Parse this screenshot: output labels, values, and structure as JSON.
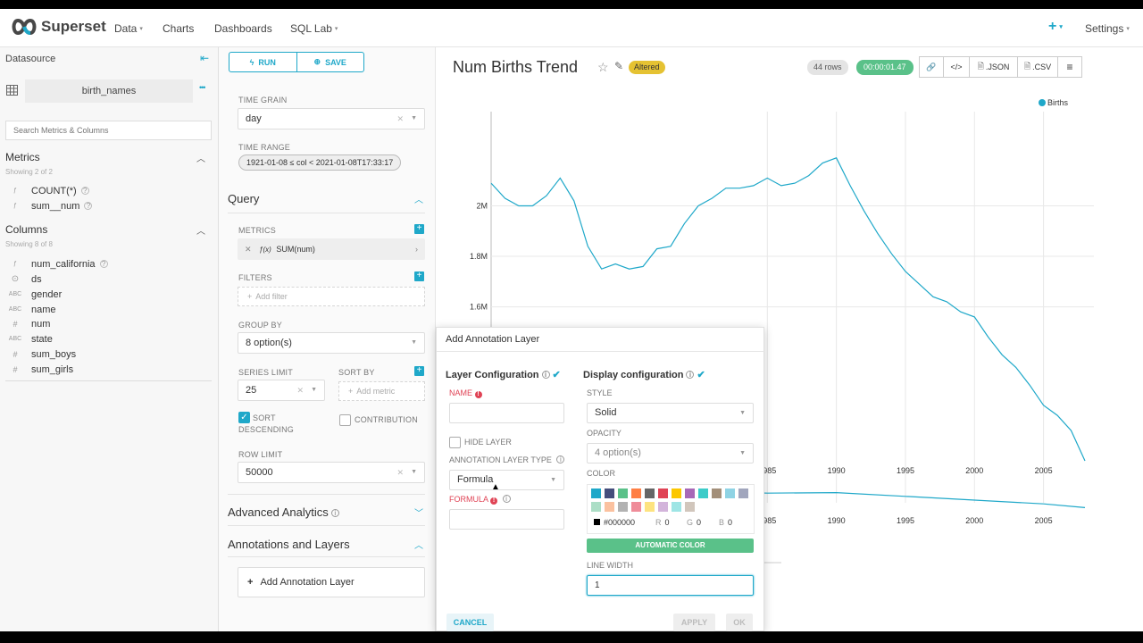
{
  "navbar": {
    "brand": "Superset",
    "items": [
      {
        "label": "Data",
        "caret": "▾"
      },
      {
        "label": "Charts"
      },
      {
        "label": "Dashboards"
      },
      {
        "label": "SQL Lab",
        "caret": "▾"
      }
    ],
    "plus": "+",
    "settings": "Settings",
    "settings_caret": "▾"
  },
  "datasource": {
    "header": "Datasource",
    "collapse_icon": "⇤",
    "name": "birth_names",
    "more_icon": "•••",
    "search_placeholder": "Search Metrics & Columns",
    "metrics_title": "Metrics",
    "metrics_count": "Showing 2 of 2",
    "metrics": [
      {
        "type": "ƒ",
        "name": "COUNT(*)",
        "info": true
      },
      {
        "type": "ƒ",
        "name": "sum__num",
        "info": true
      }
    ],
    "columns_title": "Columns",
    "columns_count": "Showing 8 of 8",
    "columns": [
      {
        "type": "ƒ",
        "name": "num_california",
        "info": true
      },
      {
        "type": "⊙",
        "name": "ds"
      },
      {
        "type": "ABC",
        "name": "gender"
      },
      {
        "type": "ABC",
        "name": "name"
      },
      {
        "type": "#",
        "name": "num"
      },
      {
        "type": "ABC",
        "name": "state"
      },
      {
        "type": "#",
        "name": "sum_boys"
      },
      {
        "type": "#",
        "name": "sum_girls"
      }
    ]
  },
  "controls": {
    "run_label": "RUN",
    "save_label": "SAVE",
    "run_icon": "ϟ",
    "save_icon": "⊕",
    "time_grain_label": "TIME GRAIN",
    "time_grain_value": "day",
    "time_range_label": "TIME RANGE",
    "time_range_value": "1921-01-08 ≤ col < 2021-01-08T17:33:17",
    "query_title": "Query",
    "metrics_label": "METRICS",
    "metric_value": "SUM(num)",
    "metric_fx": "ƒ(x)",
    "filters_label": "FILTERS",
    "filters_placeholder": "Add filter",
    "group_by_label": "GROUP BY",
    "group_by_value": "8 option(s)",
    "series_limit_label": "SERIES LIMIT",
    "series_limit_value": "25",
    "sort_by_label": "SORT BY",
    "sort_by_placeholder": "Add metric",
    "sort_desc_label_1": "SORT",
    "sort_desc_label_2": "DESCENDING",
    "contribution_label": "CONTRIBUTION",
    "row_limit_label": "ROW LIMIT",
    "row_limit_value": "50000",
    "advanced_title": "Advanced Analytics",
    "annotations_title": "Annotations and Layers",
    "add_annotation_label": "Add Annotation Layer"
  },
  "chart_header": {
    "title": "Num Births Trend",
    "altered": "Altered",
    "rows": "44 rows",
    "time": "00:00:01.47",
    "toolbar": [
      "🔗",
      "</>",
      ".JSON",
      ".CSV",
      "≡"
    ]
  },
  "chart_data": {
    "type": "line",
    "series": [
      {
        "name": "Births",
        "color": "#1fa8c9"
      }
    ],
    "x": [
      1965.0,
      1966.0,
      1967.0,
      1968.0,
      1969.0,
      1970.0,
      1971.0,
      1972.0,
      1973.0,
      1974.0,
      1975.0,
      1976.0,
      1977.0,
      1978.0,
      1979.0,
      1980.0,
      1981.0,
      1982.0,
      1983.0,
      1984.0,
      1985.0,
      1986.0,
      1987.0,
      1988.0,
      1989.0,
      1990.0,
      1991.0,
      1992.0,
      1993.0,
      1994.0,
      1995.0,
      1996.0,
      1997.0,
      1998.0,
      1999.0,
      2000.0,
      2001.0,
      2002.0,
      2003.0,
      2004.0,
      2005.0,
      2006.0,
      2007.0,
      2008.0
    ],
    "y": [
      2.09,
      2.03,
      2.0,
      2.0,
      2.04,
      2.11,
      2.02,
      1.84,
      1.75,
      1.77,
      1.75,
      1.76,
      1.83,
      1.84,
      1.93,
      2.0,
      2.03,
      2.07,
      2.07,
      2.08,
      2.11,
      2.08,
      2.09,
      2.12,
      2.17,
      2.19,
      2.08,
      1.98,
      1.89,
      1.81,
      1.74,
      1.69,
      1.64,
      1.62,
      1.58,
      1.56,
      1.48,
      1.41,
      1.36,
      1.29,
      1.21,
      1.17,
      1.11,
      0.99
    ],
    "y_tick_labels": [
      "2M",
      "1.8M",
      "1.6M"
    ],
    "y_ticks": [
      2.0,
      1.8,
      1.6
    ],
    "x_tick_labels": [
      "1985",
      "1990",
      "1995",
      "2000",
      "2005"
    ],
    "x_ticks": [
      1985,
      1990,
      1995,
      2000,
      2005
    ],
    "xlim": [
      1965,
      2008
    ],
    "ylim": [
      0.99,
      2.2
    ],
    "legend": "top-right",
    "grid": true,
    "bottom_chart": {
      "x": [
        1981.0,
        1985.0,
        1990.0,
        1995.0,
        2000.0,
        2005.0,
        2008.0
      ],
      "y": [
        0.96,
        0.93,
        0.94,
        0.87,
        0.8,
        0.73,
        0.66
      ],
      "x_tick_labels": [
        "1985",
        "1990",
        "1995",
        "2000",
        "2005"
      ]
    }
  },
  "modal": {
    "title": "Add Annotation Layer",
    "layer_config_title": "Layer Configuration",
    "display_config_title": "Display configuration",
    "name_label": "NAME",
    "hide_layer_label": "HIDE LAYER",
    "ann_type_label": "ANNOTATION LAYER TYPE",
    "ann_type_value": "Formula",
    "formula_label": "FORMULA",
    "style_label": "STYLE",
    "style_value": "Solid",
    "opacity_label": "OPACITY",
    "opacity_value": "4 option(s)",
    "color_label": "COLOR",
    "swatches_row1": [
      "#1fa8c9",
      "#454e7c",
      "#5ac189",
      "#ff7f44",
      "#666666",
      "#e04355",
      "#fcc700",
      "#a868b7",
      "#3cccc9",
      "#a38f79",
      "#8fd3e4",
      "#a1a6bd"
    ],
    "swatches_row2": [
      "#acdec6",
      "#fbc19f",
      "#b2b2b2",
      "#ef8c99",
      "#fde380",
      "#d3b4db",
      "#9ee5e5",
      "#d1c6bc"
    ],
    "hex_value": "#000000",
    "r_label": "R",
    "r_value": "0",
    "g_label": "G",
    "g_value": "0",
    "b_label": "B",
    "b_value": "0",
    "auto_color_label": "AUTOMATIC COLOR",
    "line_width_label": "LINE WIDTH",
    "line_width_value": "1",
    "cancel_label": "CANCEL",
    "apply_label": "APPLY",
    "ok_label": "OK"
  }
}
